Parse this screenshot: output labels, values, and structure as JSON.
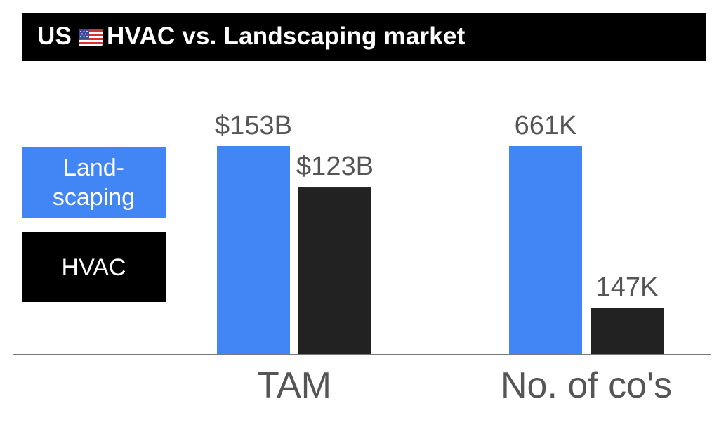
{
  "title": {
    "prefix": "US",
    "flag": "us-flag-icon",
    "main": "HVAC vs. Landscaping market"
  },
  "legend": [
    {
      "label": "Land-scaping",
      "color": "#4285f4"
    },
    {
      "label": "HVAC",
      "color": "#000000"
    }
  ],
  "chart_data": {
    "type": "bar",
    "title": "US HVAC vs. Landscaping market",
    "categories": [
      "TAM",
      "No. of co's"
    ],
    "legend_position": "left",
    "grid": false,
    "series": [
      {
        "name": "Land-scaping",
        "color": "#4285f4",
        "values": [
          153,
          661
        ],
        "labels": [
          "$153B",
          "661K"
        ]
      },
      {
        "name": "HVAC",
        "color": "#222222",
        "values": [
          123,
          147
        ],
        "labels": [
          "$123B",
          "147K"
        ]
      }
    ],
    "category_max": [
      153,
      661
    ]
  }
}
